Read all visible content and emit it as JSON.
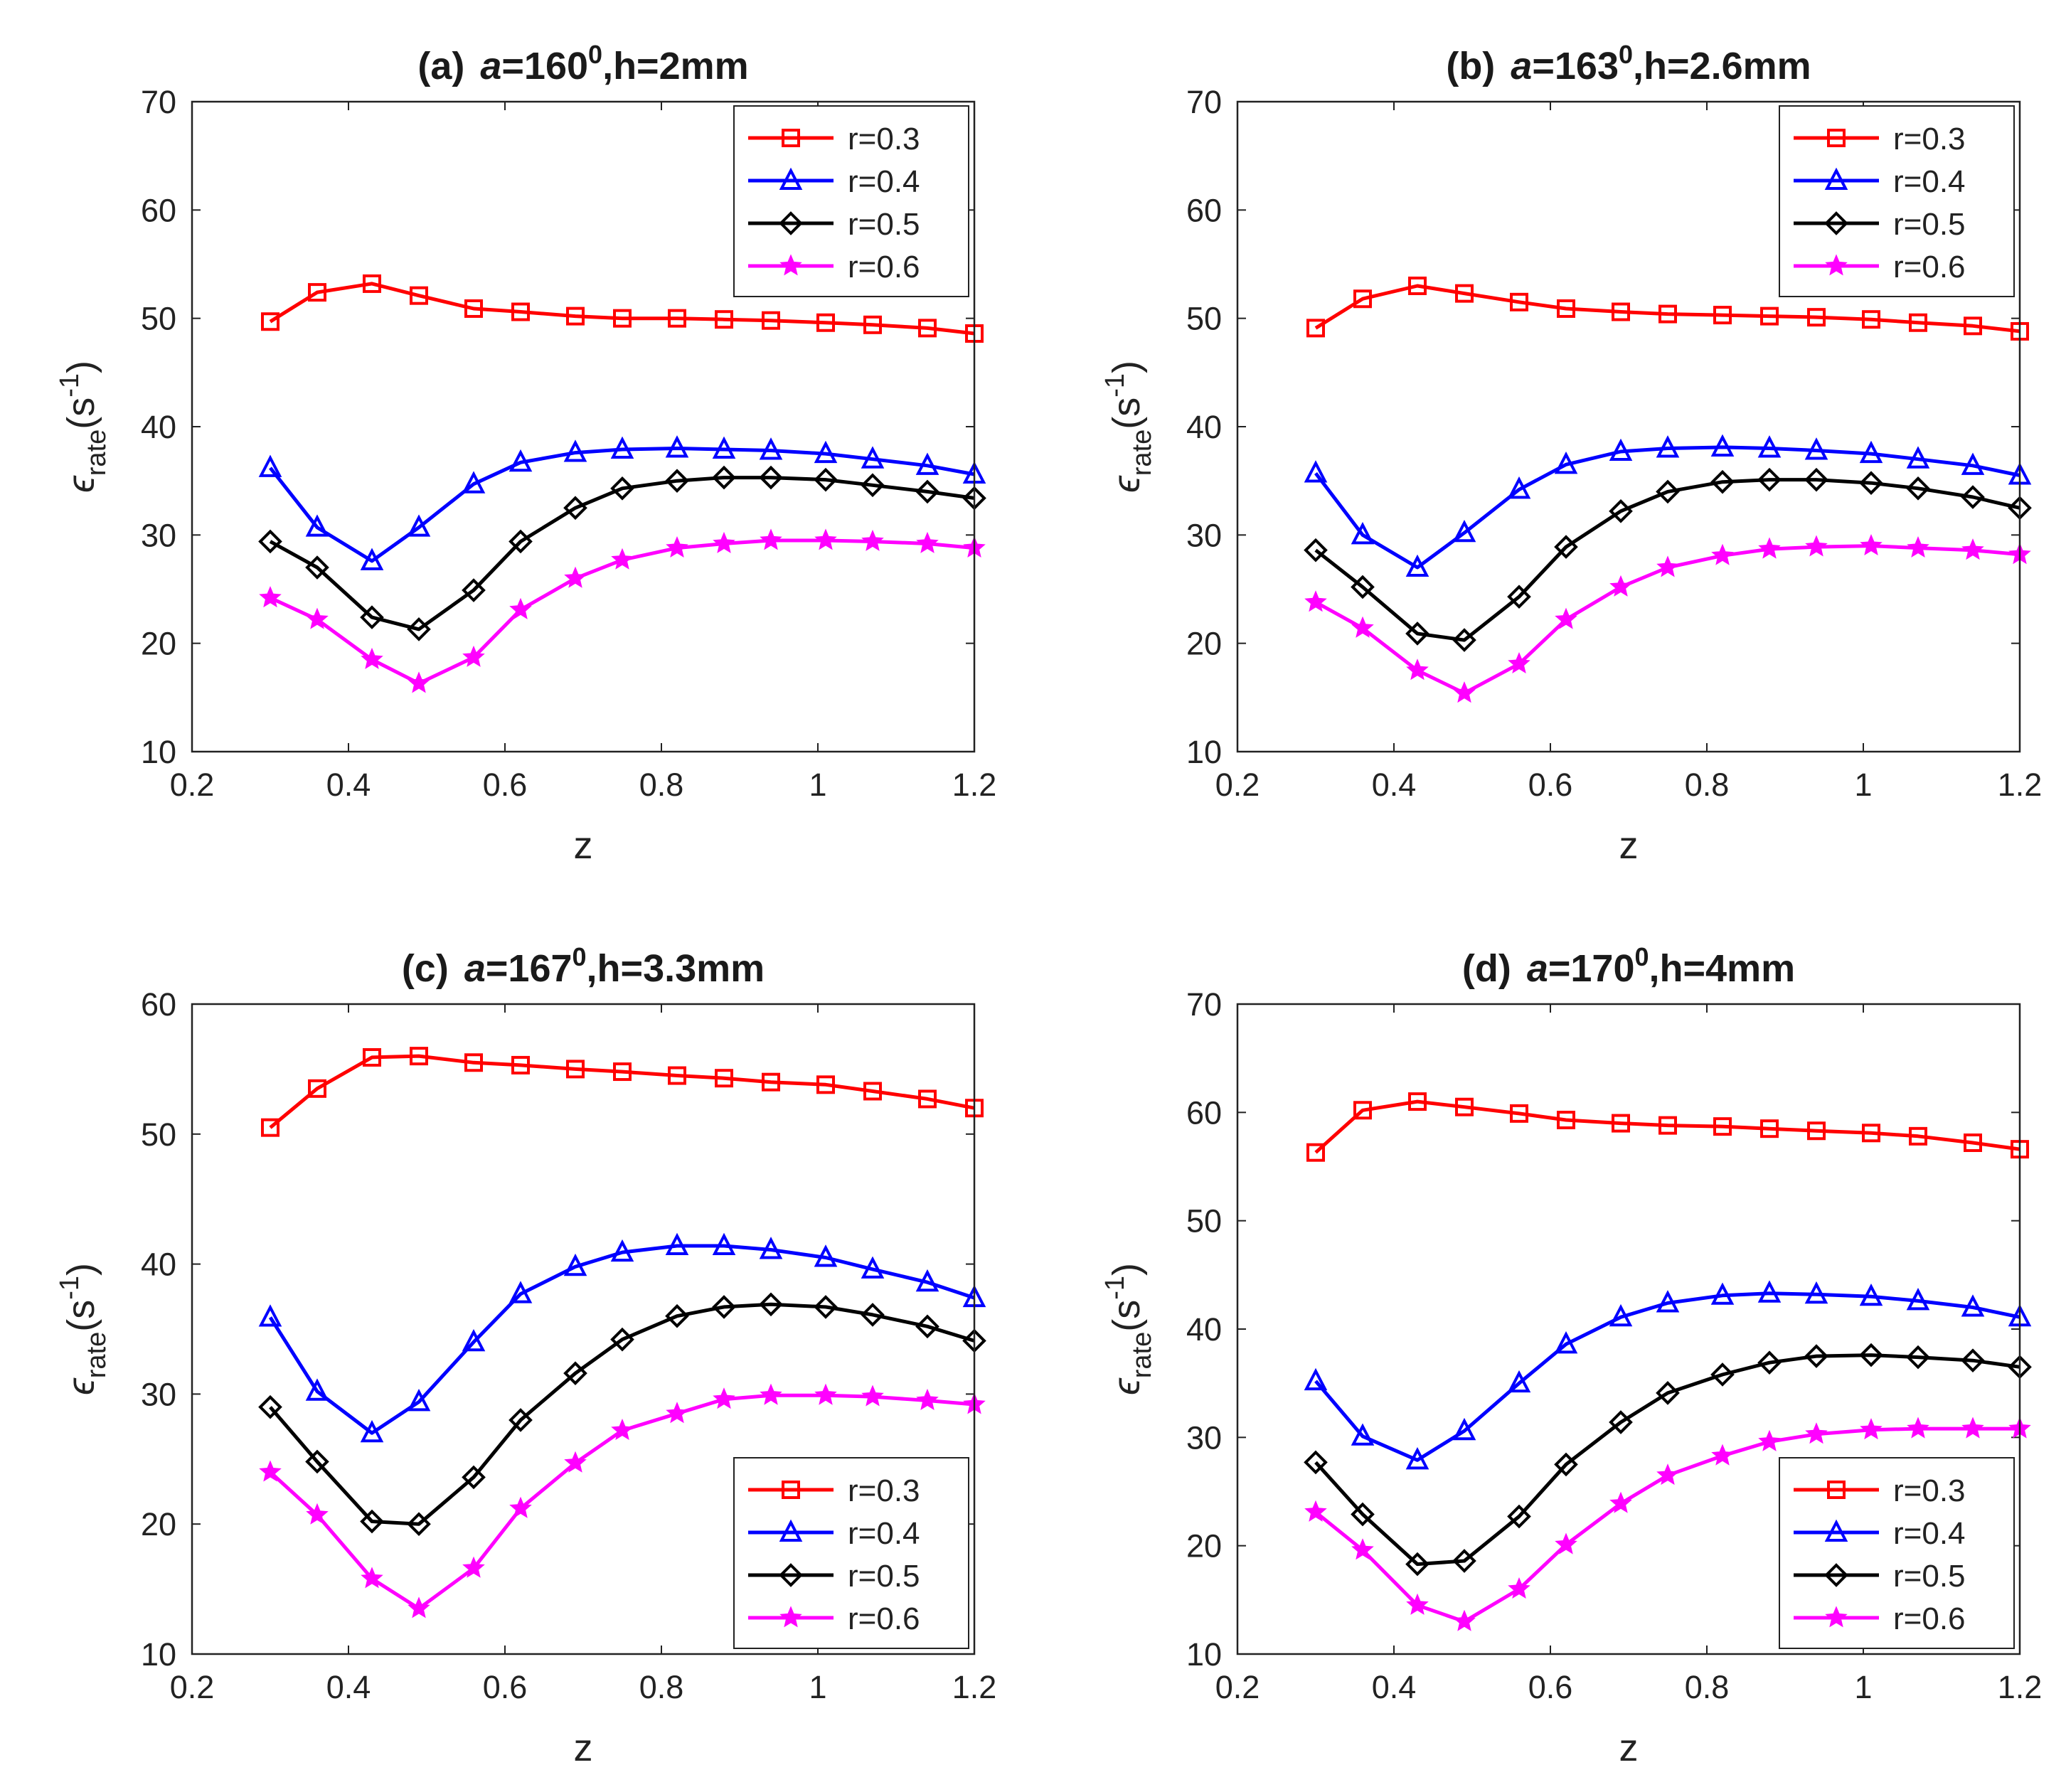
{
  "figure": {
    "panels": [
      {
        "title": {
          "label": "(a)",
          "a_sym": "a",
          "a_val": "=160",
          "sup": "0",
          "rest": ",h=2mm"
        },
        "xlabel": "z",
        "ylabel": {
          "main": "ϵ",
          "sub": "rate",
          "unit": "(s",
          "sup": "-1",
          "close": ")"
        },
        "xticks": [
          "0.2",
          "0.4",
          "0.6",
          "0.8",
          "1",
          "1.2"
        ],
        "yticks": [
          "10",
          "20",
          "30",
          "40",
          "50",
          "60",
          "70"
        ],
        "legend_location": "top-right",
        "legend_labels": [
          "r=0.3",
          "r=0.4",
          "r=0.5",
          "r=0.6"
        ]
      },
      {
        "title": {
          "label": "(b)",
          "a_sym": "a",
          "a_val": "=163",
          "sup": "0",
          "rest": ",h=2.6mm"
        },
        "xlabel": "z",
        "ylabel": {
          "main": "ϵ",
          "sub": "rate",
          "unit": "(s",
          "sup": "-1",
          "close": ")"
        },
        "xticks": [
          "0.2",
          "0.4",
          "0.6",
          "0.8",
          "1",
          "1.2"
        ],
        "yticks": [
          "10",
          "20",
          "30",
          "40",
          "50",
          "60",
          "70"
        ],
        "legend_location": "top-right",
        "legend_labels": [
          "r=0.3",
          "r=0.4",
          "r=0.5",
          "r=0.6"
        ]
      },
      {
        "title": {
          "label": "(c)",
          "a_sym": "a",
          "a_val": "=167",
          "sup": "0",
          "rest": ",h=3.3mm"
        },
        "xlabel": "z",
        "ylabel": {
          "main": "ϵ",
          "sub": "rate",
          "unit": "(s",
          "sup": "-1",
          "close": ")"
        },
        "xticks": [
          "0.2",
          "0.4",
          "0.6",
          "0.8",
          "1",
          "1.2"
        ],
        "yticks": [
          "10",
          "20",
          "30",
          "40",
          "50",
          "60"
        ],
        "legend_location": "bottom-right",
        "legend_labels": [
          "r=0.3",
          "r=0.4",
          "r=0.5",
          "r=0.6"
        ]
      },
      {
        "title": {
          "label": "(d)",
          "a_sym": "a",
          "a_val": "=170",
          "sup": "0",
          "rest": ",h=4mm"
        },
        "xlabel": "z",
        "ylabel": {
          "main": "ϵ",
          "sub": "rate",
          "unit": "(s",
          "sup": "-1",
          "close": ")"
        },
        "xticks": [
          "0.2",
          "0.4",
          "0.6",
          "0.8",
          "1",
          "1.2"
        ],
        "yticks": [
          "10",
          "20",
          "30",
          "40",
          "50",
          "60",
          "70"
        ],
        "legend_location": "bottom-right",
        "legend_labels": [
          "r=0.3",
          "r=0.4",
          "r=0.5",
          "r=0.6"
        ]
      }
    ]
  },
  "series_style": [
    {
      "color": "#ff0000",
      "marker": "square"
    },
    {
      "color": "#0000ff",
      "marker": "triangle"
    },
    {
      "color": "#000000",
      "marker": "diamond"
    },
    {
      "color": "#ff00ff",
      "marker": "star"
    }
  ],
  "chart_data": [
    {
      "type": "line",
      "x": [
        0.3,
        0.36,
        0.43,
        0.49,
        0.56,
        0.62,
        0.69,
        0.75,
        0.82,
        0.88,
        0.94,
        1.01,
        1.07,
        1.14,
        1.2
      ],
      "xlim": [
        0.2,
        1.2
      ],
      "ylim": [
        10,
        70
      ],
      "grid": false,
      "series": [
        {
          "name": "r=0.3",
          "values": [
            49.7,
            52.4,
            53.2,
            52.1,
            50.9,
            50.6,
            50.2,
            50.0,
            50.0,
            49.9,
            49.8,
            49.6,
            49.4,
            49.1,
            48.6
          ]
        },
        {
          "name": "r=0.4",
          "values": [
            36.2,
            30.7,
            27.6,
            30.7,
            34.7,
            36.7,
            37.6,
            37.9,
            38.0,
            37.9,
            37.8,
            37.5,
            37.0,
            36.4,
            35.6
          ]
        },
        {
          "name": "r=0.5",
          "values": [
            29.4,
            27.0,
            22.4,
            21.3,
            24.9,
            29.4,
            32.5,
            34.3,
            35.0,
            35.3,
            35.3,
            35.1,
            34.6,
            34.0,
            33.4
          ]
        },
        {
          "name": "r=0.6",
          "values": [
            24.2,
            22.2,
            18.5,
            16.3,
            18.7,
            23.1,
            26.0,
            27.7,
            28.8,
            29.2,
            29.5,
            29.5,
            29.4,
            29.2,
            28.8
          ]
        }
      ]
    },
    {
      "type": "line",
      "x": [
        0.3,
        0.36,
        0.43,
        0.49,
        0.56,
        0.62,
        0.69,
        0.75,
        0.82,
        0.88,
        0.94,
        1.01,
        1.07,
        1.14,
        1.2
      ],
      "xlim": [
        0.2,
        1.2
      ],
      "ylim": [
        10,
        70
      ],
      "grid": false,
      "series": [
        {
          "name": "r=0.3",
          "values": [
            49.1,
            51.8,
            53.0,
            52.3,
            51.5,
            50.9,
            50.6,
            50.4,
            50.3,
            50.2,
            50.1,
            49.9,
            49.6,
            49.3,
            48.8
          ]
        },
        {
          "name": "r=0.4",
          "values": [
            35.7,
            30.0,
            27.0,
            30.2,
            34.2,
            36.5,
            37.7,
            38.0,
            38.1,
            38.0,
            37.8,
            37.5,
            37.0,
            36.4,
            35.5
          ]
        },
        {
          "name": "r=0.5",
          "values": [
            28.6,
            25.2,
            20.9,
            20.3,
            24.3,
            28.9,
            32.2,
            34.0,
            34.9,
            35.1,
            35.1,
            34.8,
            34.3,
            33.5,
            32.5
          ]
        },
        {
          "name": "r=0.6",
          "values": [
            23.8,
            21.4,
            17.5,
            15.4,
            18.1,
            22.2,
            25.2,
            27.0,
            28.1,
            28.7,
            28.9,
            29.0,
            28.8,
            28.6,
            28.2
          ]
        }
      ]
    },
    {
      "type": "line",
      "x": [
        0.3,
        0.36,
        0.43,
        0.49,
        0.56,
        0.62,
        0.69,
        0.75,
        0.82,
        0.88,
        0.94,
        1.01,
        1.07,
        1.14,
        1.2
      ],
      "xlim": [
        0.2,
        1.2
      ],
      "ylim": [
        10,
        60
      ],
      "grid": false,
      "series": [
        {
          "name": "r=0.3",
          "values": [
            50.5,
            53.5,
            55.9,
            56.0,
            55.5,
            55.3,
            55.0,
            54.8,
            54.5,
            54.3,
            54.0,
            53.8,
            53.3,
            52.7,
            52.0
          ]
        },
        {
          "name": "r=0.4",
          "values": [
            35.9,
            30.2,
            27.0,
            29.4,
            34.0,
            37.7,
            39.8,
            40.9,
            41.4,
            41.4,
            41.1,
            40.5,
            39.6,
            38.6,
            37.4
          ]
        },
        {
          "name": "r=0.5",
          "values": [
            29.0,
            24.8,
            20.2,
            20.0,
            23.6,
            28.0,
            31.6,
            34.2,
            36.0,
            36.7,
            36.9,
            36.7,
            36.1,
            35.2,
            34.1
          ]
        },
        {
          "name": "r=0.6",
          "values": [
            24.0,
            20.7,
            15.8,
            13.5,
            16.6,
            21.2,
            24.7,
            27.2,
            28.5,
            29.6,
            29.9,
            29.9,
            29.8,
            29.5,
            29.2
          ]
        }
      ]
    },
    {
      "type": "line",
      "x": [
        0.3,
        0.36,
        0.43,
        0.49,
        0.56,
        0.62,
        0.69,
        0.75,
        0.82,
        0.88,
        0.94,
        1.01,
        1.07,
        1.14,
        1.2
      ],
      "xlim": [
        0.2,
        1.2
      ],
      "ylim": [
        10,
        70
      ],
      "grid": false,
      "series": [
        {
          "name": "r=0.3",
          "values": [
            56.3,
            60.2,
            61.0,
            60.5,
            59.9,
            59.3,
            59.0,
            58.8,
            58.7,
            58.5,
            58.3,
            58.1,
            57.8,
            57.2,
            56.6
          ]
        },
        {
          "name": "r=0.4",
          "values": [
            35.2,
            30.1,
            27.9,
            30.6,
            35.0,
            38.6,
            41.1,
            42.4,
            43.1,
            43.3,
            43.2,
            43.0,
            42.6,
            42.0,
            41.1
          ]
        },
        {
          "name": "r=0.5",
          "values": [
            27.7,
            22.9,
            18.3,
            18.6,
            22.7,
            27.5,
            31.4,
            34.1,
            35.8,
            36.9,
            37.5,
            37.6,
            37.4,
            37.1,
            36.5
          ]
        },
        {
          "name": "r=0.6",
          "values": [
            23.1,
            19.6,
            14.5,
            13.0,
            16.0,
            20.1,
            23.9,
            26.5,
            28.3,
            29.6,
            30.3,
            30.7,
            30.8,
            30.8,
            30.8
          ]
        }
      ]
    }
  ]
}
